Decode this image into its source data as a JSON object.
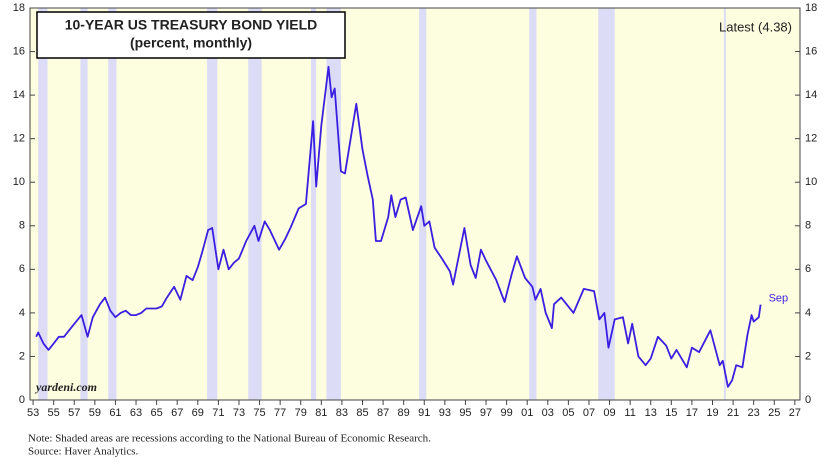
{
  "chart_data": {
    "type": "line",
    "title": "10-YEAR US TREASURY BOND YIELD",
    "subtitle": "(percent, monthly)",
    "annotation": "Latest (4.38)",
    "end_label": "Sep",
    "watermark": "yardeni.com",
    "notes": [
      "Note: Shaded areas are recessions according to the National Bureau of Economic Research.",
      "Source: Haver Analytics."
    ],
    "color": "#3a1fe0",
    "background": "#fdfde0",
    "recession_color": "#dcdcf6",
    "grid": false,
    "xlim": [
      1952.7,
      2027.5
    ],
    "ylim": [
      0,
      18
    ],
    "yticks": [
      0,
      2,
      4,
      6,
      8,
      10,
      12,
      14,
      16,
      18
    ],
    "xticks": [
      {
        "value": 1953,
        "label": "53"
      },
      {
        "value": 1955,
        "label": "55"
      },
      {
        "value": 1957,
        "label": "57"
      },
      {
        "value": 1959,
        "label": "59"
      },
      {
        "value": 1961,
        "label": "61"
      },
      {
        "value": 1963,
        "label": "63"
      },
      {
        "value": 1965,
        "label": "65"
      },
      {
        "value": 1967,
        "label": "67"
      },
      {
        "value": 1969,
        "label": "69"
      },
      {
        "value": 1971,
        "label": "71"
      },
      {
        "value": 1973,
        "label": "73"
      },
      {
        "value": 1975,
        "label": "75"
      },
      {
        "value": 1977,
        "label": "77"
      },
      {
        "value": 1979,
        "label": "79"
      },
      {
        "value": 1981,
        "label": "81"
      },
      {
        "value": 1983,
        "label": "83"
      },
      {
        "value": 1985,
        "label": "85"
      },
      {
        "value": 1987,
        "label": "87"
      },
      {
        "value": 1989,
        "label": "89"
      },
      {
        "value": 1991,
        "label": "91"
      },
      {
        "value": 1993,
        "label": "93"
      },
      {
        "value": 1995,
        "label": "95"
      },
      {
        "value": 1997,
        "label": "97"
      },
      {
        "value": 1999,
        "label": "99"
      },
      {
        "value": 2001,
        "label": "01"
      },
      {
        "value": 2003,
        "label": "03"
      },
      {
        "value": 2005,
        "label": "05"
      },
      {
        "value": 2007,
        "label": "07"
      },
      {
        "value": 2009,
        "label": "09"
      },
      {
        "value": 2011,
        "label": "11"
      },
      {
        "value": 2013,
        "label": "13"
      },
      {
        "value": 2015,
        "label": "15"
      },
      {
        "value": 2017,
        "label": "17"
      },
      {
        "value": 2019,
        "label": "19"
      },
      {
        "value": 2021,
        "label": "21"
      },
      {
        "value": 2023,
        "label": "23"
      },
      {
        "value": 2025,
        "label": "25"
      },
      {
        "value": 2027,
        "label": "27"
      }
    ],
    "recessions": [
      {
        "start": 1953.5,
        "end": 1954.4
      },
      {
        "start": 1957.6,
        "end": 1958.3
      },
      {
        "start": 1960.3,
        "end": 1961.1
      },
      {
        "start": 1969.9,
        "end": 1970.9
      },
      {
        "start": 1973.9,
        "end": 1975.2
      },
      {
        "start": 1980.0,
        "end": 1980.5
      },
      {
        "start": 1981.5,
        "end": 1982.9
      },
      {
        "start": 1990.5,
        "end": 1991.2
      },
      {
        "start": 2001.2,
        "end": 2001.9
      },
      {
        "start": 2007.9,
        "end": 2009.5
      },
      {
        "start": 2020.1,
        "end": 2020.3
      }
    ],
    "x": [
      1953.3,
      1953.5,
      1954.0,
      1954.5,
      1955.0,
      1955.5,
      1956.0,
      1956.5,
      1957.0,
      1957.7,
      1958.3,
      1958.8,
      1959.5,
      1960.0,
      1960.5,
      1961.0,
      1961.5,
      1962.0,
      1962.5,
      1963.0,
      1963.5,
      1964.0,
      1965.0,
      1965.5,
      1966.0,
      1966.7,
      1967.3,
      1967.9,
      1968.5,
      1969.0,
      1969.5,
      1970.0,
      1970.4,
      1971.0,
      1971.5,
      1972.0,
      1972.5,
      1973.0,
      1973.7,
      1974.5,
      1974.9,
      1975.5,
      1976.0,
      1976.9,
      1977.5,
      1978.0,
      1978.8,
      1979.5,
      1980.2,
      1980.5,
      1981.0,
      1981.7,
      1982.0,
      1982.3,
      1982.9,
      1983.3,
      1984.4,
      1985.0,
      1985.5,
      1986.0,
      1986.3,
      1986.8,
      1987.5,
      1987.8,
      1988.2,
      1988.7,
      1989.2,
      1989.9,
      1990.7,
      1991.0,
      1991.5,
      1992.0,
      1992.7,
      1993.5,
      1993.8,
      1994.9,
      1995.5,
      1996.0,
      1996.5,
      1997.0,
      1998.0,
      1998.8,
      1999.5,
      2000.0,
      2000.8,
      2001.5,
      2001.8,
      2002.3,
      2002.8,
      2003.4,
      2003.6,
      2004.3,
      2005.5,
      2006.5,
      2007.5,
      2008.0,
      2008.5,
      2008.9,
      2009.5,
      2010.3,
      2010.8,
      2011.2,
      2011.8,
      2012.5,
      2013.0,
      2013.7,
      2014.5,
      2015.0,
      2015.5,
      2016.5,
      2017.0,
      2017.7,
      2018.8,
      2019.7,
      2020.0,
      2020.5,
      2020.9,
      2021.3,
      2021.9,
      2022.4,
      2022.8,
      2023.0,
      2023.5,
      2023.67
    ],
    "values": [
      2.9,
      3.1,
      2.6,
      2.3,
      2.6,
      2.9,
      2.9,
      3.2,
      3.5,
      3.9,
      2.9,
      3.8,
      4.4,
      4.7,
      4.1,
      3.8,
      4.0,
      4.1,
      3.9,
      3.9,
      4.0,
      4.2,
      4.2,
      4.3,
      4.7,
      5.2,
      4.6,
      5.7,
      5.5,
      6.1,
      6.9,
      7.8,
      7.9,
      6.0,
      6.9,
      6.0,
      6.3,
      6.5,
      7.3,
      8.0,
      7.3,
      8.2,
      7.8,
      6.9,
      7.4,
      7.9,
      8.8,
      9.0,
      12.8,
      9.8,
      12.6,
      15.3,
      13.9,
      14.3,
      10.5,
      10.4,
      13.6,
      11.5,
      10.3,
      9.2,
      7.3,
      7.3,
      8.4,
      9.4,
      8.4,
      9.2,
      9.3,
      7.8,
      8.9,
      8.0,
      8.2,
      7.0,
      6.5,
      5.9,
      5.3,
      7.9,
      6.2,
      5.6,
      6.9,
      6.4,
      5.5,
      4.5,
      5.8,
      6.6,
      5.6,
      5.2,
      4.6,
      5.1,
      4.0,
      3.3,
      4.4,
      4.7,
      4.0,
      5.1,
      5.0,
      3.7,
      4.0,
      2.4,
      3.7,
      3.8,
      2.6,
      3.5,
      2.0,
      1.6,
      1.9,
      2.9,
      2.5,
      1.9,
      2.3,
      1.5,
      2.4,
      2.2,
      3.2,
      1.6,
      1.8,
      0.6,
      0.9,
      1.6,
      1.5,
      3.0,
      3.9,
      3.6,
      3.8,
      4.38
    ]
  }
}
